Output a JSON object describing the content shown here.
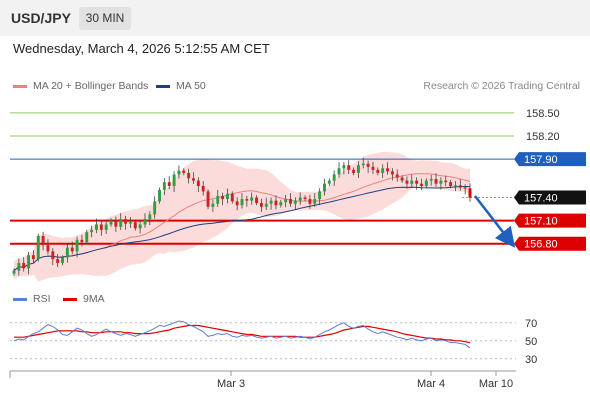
{
  "header": {
    "symbol": "USD/JPY",
    "timeframe": "30 MIN",
    "timestamp": "Wednesday, March 4, 2026 5:12:55 AM CET"
  },
  "legend": {
    "ma20_label": "MA 20 + Bollinger Bands",
    "ma20_color": "#f08080",
    "ma50_label": "MA 50",
    "ma50_color": "#1f3f7f",
    "credit": "Research © 2026 Trading Central"
  },
  "chart_data": [
    {
      "type": "candlestick",
      "ylim": [
        156.38,
        158.72
      ],
      "levels": [
        {
          "value": 158.5,
          "label": "158.50",
          "kind": "resistance",
          "color": "#8fce5a"
        },
        {
          "value": 158.2,
          "label": "158.20",
          "kind": "resistance",
          "color": "#8fce5a"
        },
        {
          "value": 157.9,
          "label": "157.90",
          "kind": "pivot",
          "color": "#1f5fbf"
        },
        {
          "value": 157.4,
          "label": "157.40",
          "kind": "last-price",
          "color": "#000000"
        },
        {
          "value": 157.1,
          "label": "157.10",
          "kind": "support",
          "color": "#dd0000"
        },
        {
          "value": 156.8,
          "label": "156.80",
          "kind": "support",
          "color": "#dd0000"
        }
      ],
      "x_ticks": [
        "Mar 3",
        "Mar 4",
        "Mar 10"
      ],
      "forecast_arrow": {
        "from": 157.42,
        "to": 156.85
      },
      "close": [
        156.45,
        156.55,
        156.48,
        156.65,
        156.6,
        156.9,
        156.78,
        156.7,
        156.6,
        156.55,
        156.62,
        156.75,
        156.7,
        156.85,
        156.82,
        156.95,
        156.98,
        157.05,
        156.98,
        157.05,
        157.1,
        157.02,
        157.12,
        157.06,
        157.08,
        157.0,
        157.05,
        157.12,
        157.18,
        157.35,
        157.5,
        157.6,
        157.55,
        157.7,
        157.75,
        157.72,
        157.65,
        157.62,
        157.55,
        157.48,
        157.28,
        157.32,
        157.42,
        157.38,
        157.45,
        157.35,
        157.3,
        157.38,
        157.36,
        157.4,
        157.33,
        157.28,
        157.32,
        157.36,
        157.3,
        157.34,
        157.38,
        157.32,
        157.36,
        157.4,
        157.38,
        157.32,
        157.38,
        157.48,
        157.58,
        157.62,
        157.7,
        157.78,
        157.82,
        157.76,
        157.72,
        157.82,
        157.84,
        157.8,
        157.76,
        157.72,
        157.78,
        157.74,
        157.7,
        157.66,
        157.62,
        157.58,
        157.62,
        157.58,
        157.55,
        157.62,
        157.64,
        157.58,
        157.62,
        157.6,
        157.55,
        157.56,
        157.53,
        157.52,
        157.4
      ]
    },
    {
      "type": "line",
      "ylim": [
        22,
        82
      ],
      "y_ticks": [
        70,
        50,
        30
      ],
      "series": [
        {
          "name": "RSI",
          "color": "#5b7fd6"
        },
        {
          "name": "9MA",
          "color": "#dd0000"
        }
      ],
      "rsi": [
        50,
        52,
        51,
        55,
        58,
        60,
        64,
        68,
        66,
        62,
        57,
        56,
        60,
        64,
        62,
        58,
        55,
        57,
        60,
        63,
        60,
        58,
        56,
        58,
        57,
        55,
        57,
        59,
        61,
        64,
        67,
        66,
        68,
        70,
        72,
        71,
        68,
        66,
        63,
        60,
        55,
        56,
        58,
        57,
        58,
        55,
        54,
        56,
        55,
        56,
        54,
        53,
        54,
        55,
        53,
        54,
        55,
        53,
        54,
        55,
        54,
        52,
        54,
        57,
        60,
        62,
        65,
        68,
        70,
        66,
        64,
        66,
        67,
        63,
        60,
        58,
        60,
        58,
        56,
        54,
        53,
        51,
        53,
        51,
        50,
        52,
        53,
        50,
        51,
        50,
        48,
        48,
        47,
        46,
        42
      ],
      "ma9": [
        54,
        54,
        54,
        55,
        56,
        57,
        58,
        59,
        60,
        61,
        61,
        61,
        61,
        61,
        60,
        60,
        59,
        59,
        59,
        60,
        60,
        60,
        60,
        59,
        59,
        58,
        58,
        58,
        58,
        59,
        60,
        61,
        62,
        64,
        65,
        66,
        67,
        67,
        67,
        66,
        65,
        64,
        63,
        62,
        61,
        60,
        59,
        58,
        57,
        57,
        56,
        55,
        55,
        55,
        55,
        55,
        55,
        55,
        55,
        54,
        54,
        54,
        54,
        55,
        56,
        57,
        58,
        60,
        62,
        63,
        64,
        65,
        66,
        66,
        65,
        64,
        63,
        62,
        61,
        60,
        58,
        57,
        56,
        55,
        54,
        53,
        53,
        52,
        52,
        51,
        51,
        50,
        50,
        49,
        48
      ]
    }
  ]
}
